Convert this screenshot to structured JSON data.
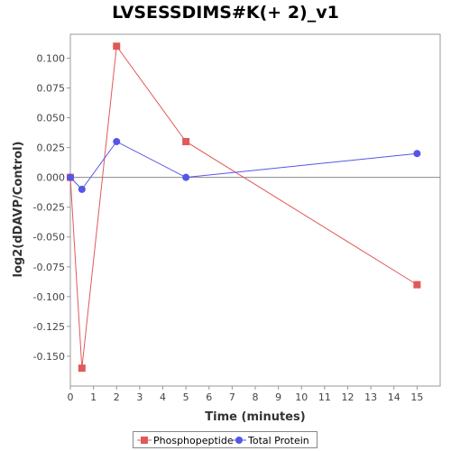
{
  "chart_data": {
    "type": "line",
    "title": "LVSESSDIMS#K(+ 2)_v1",
    "xlabel": "Time (minutes)",
    "ylabel": "log2(dDAVP/Control)",
    "xlim": [
      0,
      16
    ],
    "ylim": [
      -0.175,
      0.12
    ],
    "x_ticks": [
      "0",
      "1",
      "2",
      "3",
      "4",
      "5",
      "6",
      "7",
      "8",
      "9",
      "10",
      "11",
      "12",
      "13",
      "14",
      "15"
    ],
    "y_ticks": [
      "0.100",
      "0.075",
      "0.050",
      "0.025",
      "0.000",
      "-0.025",
      "-0.050",
      "-0.075",
      "-0.100",
      "-0.125",
      "-0.150"
    ],
    "zero_line": true,
    "grid": false,
    "legend_position": "bottom",
    "series": [
      {
        "name": "Phosphopeptide",
        "color": "#e05a5a",
        "marker": "square",
        "x": [
          0,
          0.5,
          2,
          5,
          15
        ],
        "y": [
          0.0,
          -0.16,
          0.11,
          0.03,
          -0.09
        ]
      },
      {
        "name": "Total Protein",
        "color": "#5555e8",
        "marker": "circle",
        "x": [
          0,
          0.5,
          2,
          5,
          15
        ],
        "y": [
          0.0,
          -0.01,
          0.03,
          0.0,
          0.02
        ]
      }
    ]
  }
}
